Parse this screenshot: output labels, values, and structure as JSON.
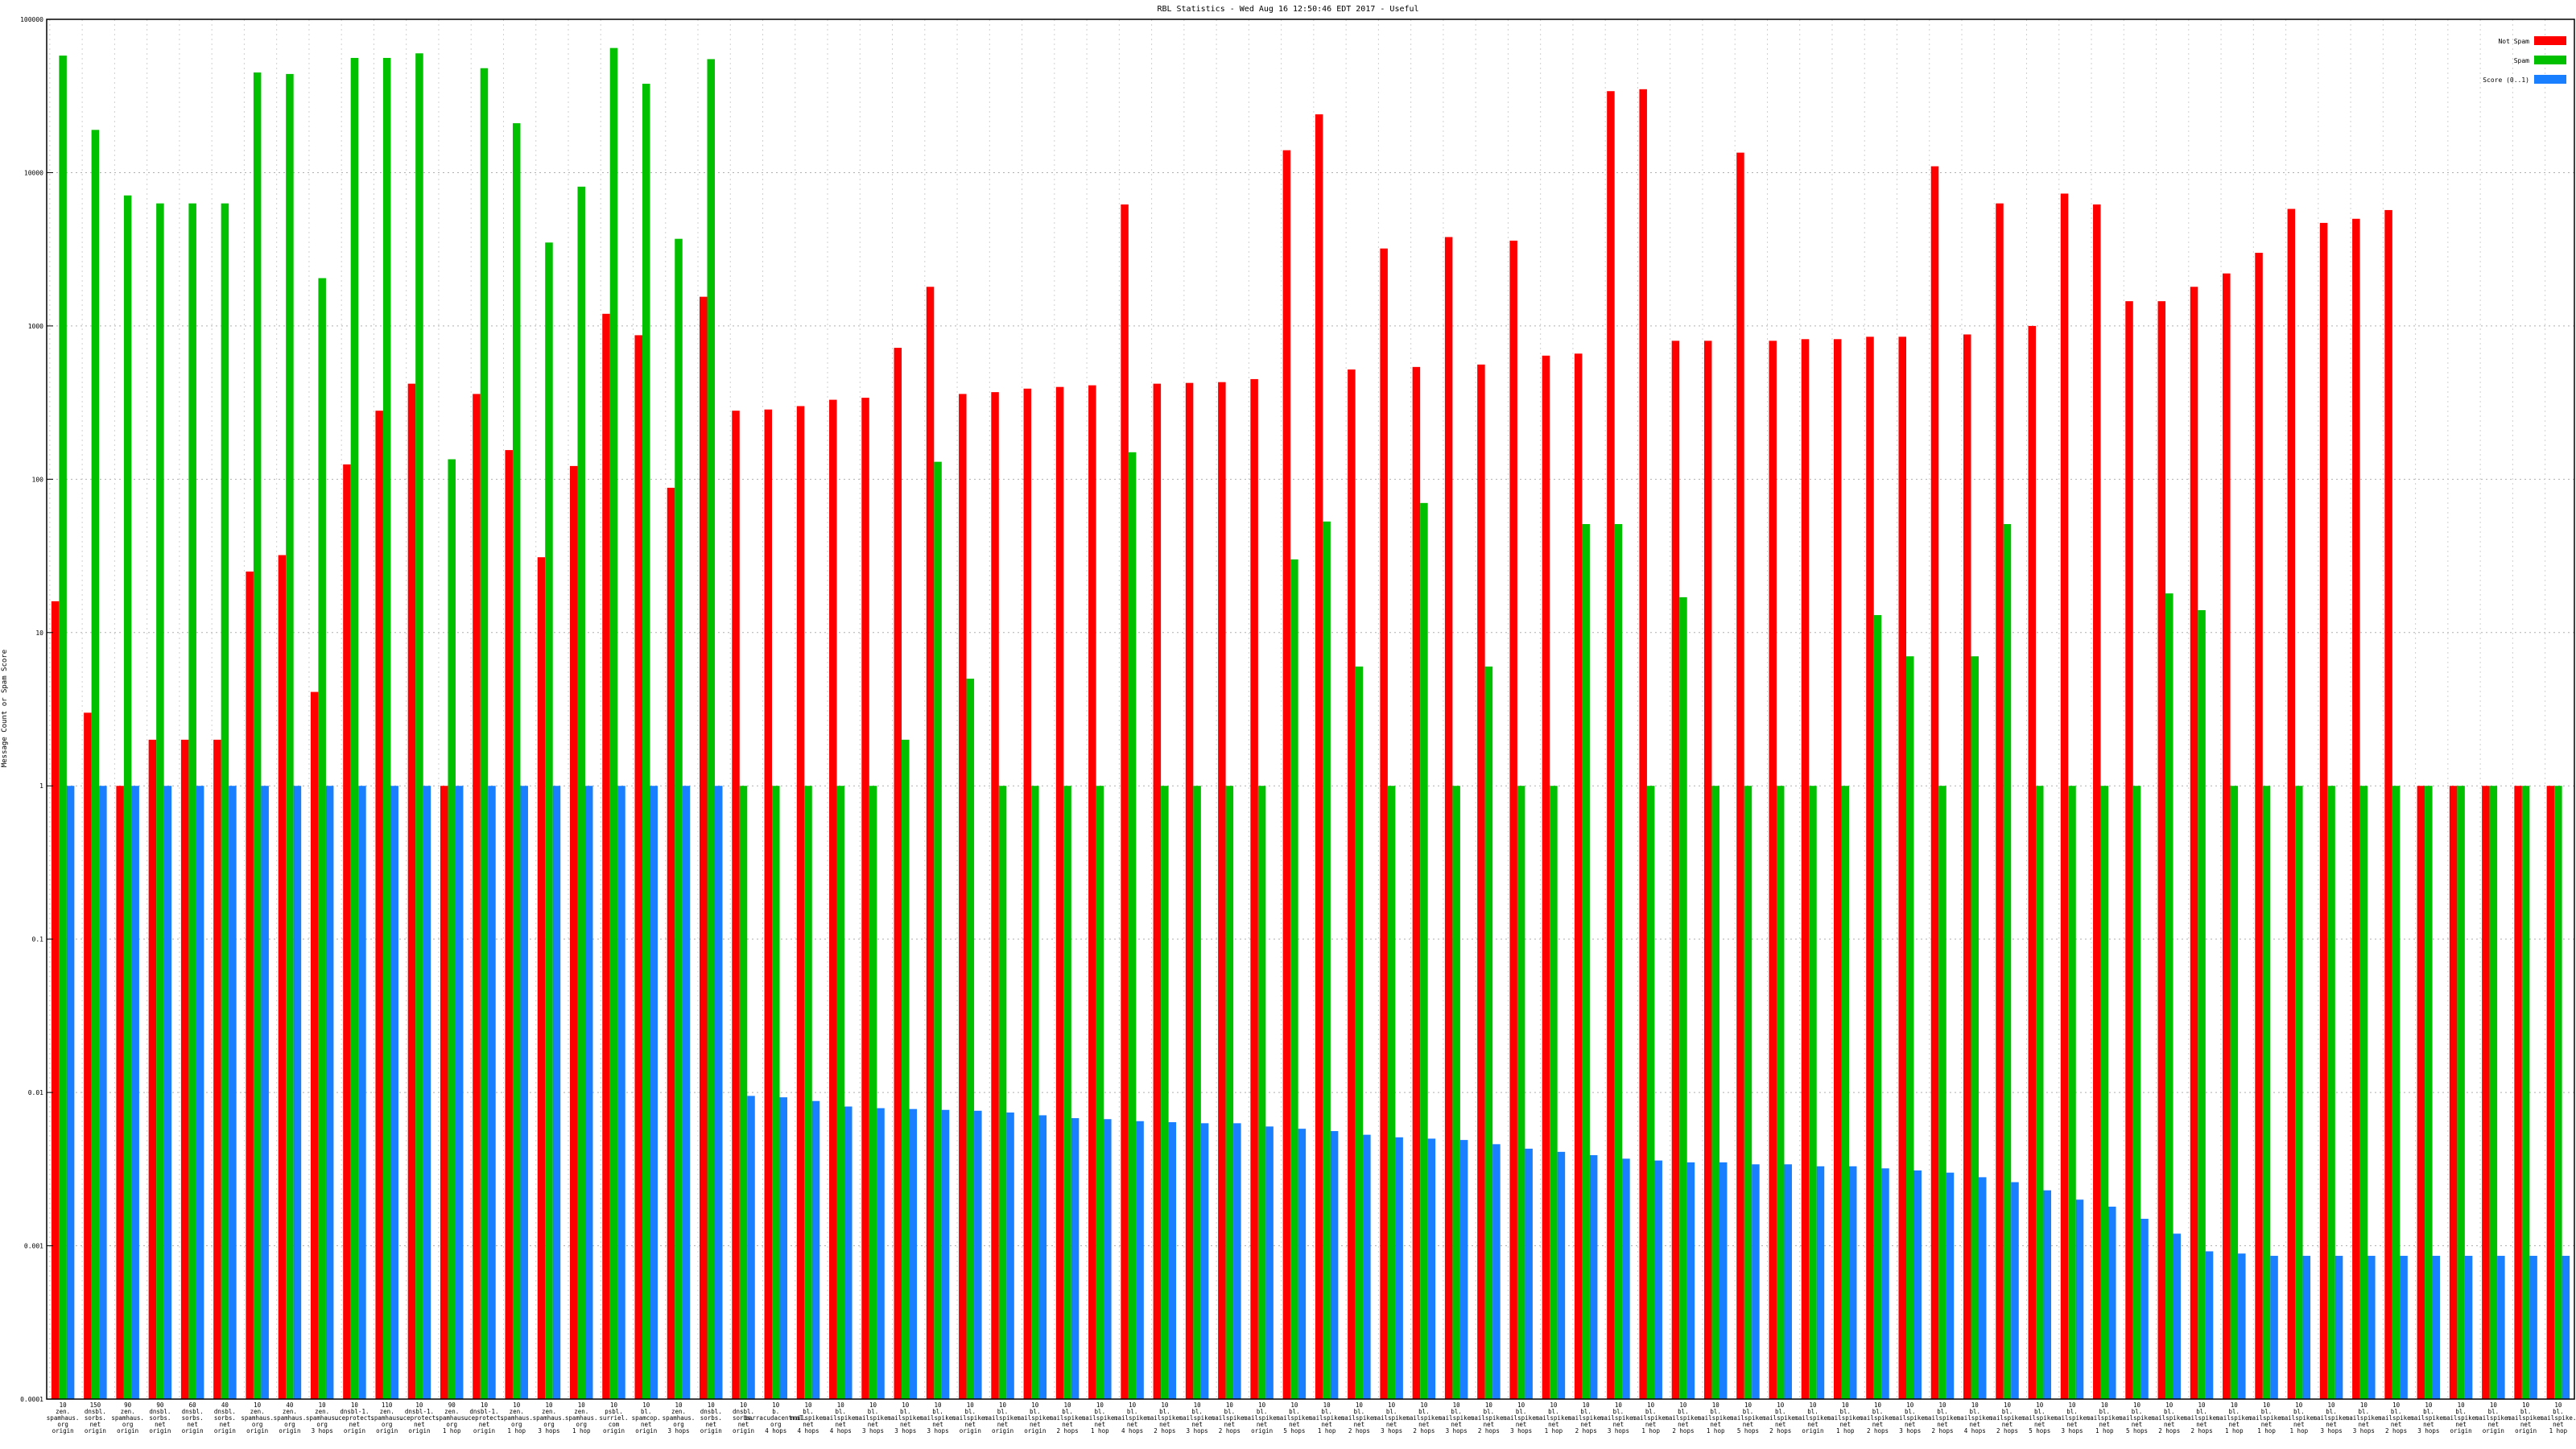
{
  "chart_data": {
    "type": "bar",
    "title": "RBL Statistics - Wed Aug 16 12:50:46 EDT 2017 - Useful",
    "xlabel": "",
    "ylabel": "Message Count or Spam Score",
    "yscale": "log",
    "ylim": [
      0.0001,
      100000
    ],
    "yticks": [
      {
        "value": 0.0001,
        "label": "0.0001"
      },
      {
        "value": 0.001,
        "label": "0.001"
      },
      {
        "value": 0.01,
        "label": "0.01"
      },
      {
        "value": 0.1,
        "label": "0.1"
      },
      {
        "value": 1,
        "label": "1"
      },
      {
        "value": 10,
        "label": "10"
      },
      {
        "value": 100,
        "label": "100"
      },
      {
        "value": 1000,
        "label": "1000"
      },
      {
        "value": 10000,
        "label": "10000"
      },
      {
        "value": 100000,
        "label": "100000"
      }
    ],
    "grid": true,
    "legend_position": "top-right",
    "categories": [
      "10\nzen.\nspamhaus.\norg\norigin",
      "150\ndnsbl.\nsorbs.\nnet\norigin",
      "90\nzen.\nspamhaus.\norg\norigin",
      "90\ndnsbl.\nsorbs.\nnet\norigin",
      "60\ndnsbl.\nsorbs.\nnet\norigin",
      "40\ndnsbl.\nsorbs.\nnet\norigin",
      "10\nzen.\nspamhaus.\norg\norigin",
      "40\nzen.\nspamhaus.\norg\norigin",
      "10\nzen.\nspamhaus.\norg\n3 hops",
      "10\ndnsbl-1.\nuceprotect.\nnet\norigin",
      "110\nzen.\nspamhaus.\norg\norigin",
      "10\ndnsbl-1.\nuceprotect.\nnet\norigin",
      "90\nzen.\nspamhaus.\norg\n1 hop",
      "10\ndnsbl-1.\nuceprotect.\nnet\norigin",
      "10\nzen.\nspamhaus.\norg\n1 hop",
      "10\nzen.\nspamhaus.\norg\n3 hops",
      "10\nzen.\nspamhaus.\norg\n1 hop",
      "10\npsbl.\nsurriel.\ncom\norigin",
      "10\nbl.\nspamcop.\nnet\norigin",
      "10\nzen.\nspamhaus.\norg\n3 hops",
      "10\ndnsbl.\nsorbs.\nnet\norigin",
      "10\ndnsbl.\nsorbs.\nnet\norigin",
      "10\nb.\nbarracudacentral.\norg\n4 hops",
      "10\nbl.\nmailspike.\nnet\n4 hops",
      "10\nbl.\nmailspike.\nnet\n4 hops",
      "10\nbl.\nmailspike.\nnet\n3 hops",
      "10\nbl.\nmailspike.\nnet\n3 hops",
      "10\nbl.\nmailspike.\nnet\n3 hops",
      "10\nbl.\nmailspike.\nnet\norigin",
      "10\nbl.\nmailspike.\nnet\norigin",
      "10\nbl.\nmailspike.\nnet\norigin",
      "10\nbl.\nmailspike.\nnet\n2 hops",
      "10\nbl.\nmailspike.\nnet\n1 hop",
      "10\nbl.\nmailspike.\nnet\n4 hops",
      "10\nbl.\nmailspike.\nnet\n2 hops",
      "10\nbl.\nmailspike.\nnet\n3 hops",
      "10\nbl.\nmailspike.\nnet\n2 hops",
      "10\nbl.\nmailspike.\nnet\norigin",
      "10\nbl.\nmailspike.\nnet\n5 hops",
      "10\nbl.\nmailspike.\nnet\n1 hop",
      "10\nbl.\nmailspike.\nnet\n2 hops",
      "10\nbl.\nmailspike.\nnet\n3 hops",
      "10\nbl.\nmailspike.\nnet\n2 hops",
      "10\nbl.\nmailspike.\nnet\n3 hops",
      "10\nbl.\nmailspike.\nnet\n2 hops",
      "10\nbl.\nmailspike.\nnet\n3 hops",
      "10\nbl.\nmailspike.\nnet\n1 hop",
      "10\nbl.\nmailspike.\nnet\n2 hops",
      "10\nbl.\nmailspike.\nnet\n3 hops",
      "10\nbl.\nmailspike.\nnet\n1 hop",
      "10\nbl.\nmailspike.\nnet\n2 hops",
      "10\nbl.\nmailspike.\nnet\n1 hop",
      "10\nbl.\nmailspike.\nnet\n5 hops",
      "10\nbl.\nmailspike.\nnet\n2 hops",
      "10\nbl.\nmailspike.\nnet\norigin",
      "10\nbl.\nmailspike.\nnet\n1 hop",
      "10\nbl.\nmailspike.\nnet\n2 hops",
      "10\nbl.\nmailspike.\nnet\n3 hops",
      "10\nbl.\nmailspike.\nnet\n2 hops",
      "10\nbl.\nmailspike.\nnet\n4 hops",
      "10\nbl.\nmailspike.\nnet\n2 hops",
      "10\nbl.\nmailspike.\nnet\n5 hops",
      "10\nbl.\nmailspike.\nnet\n3 hops",
      "10\nbl.\nmailspike.\nnet\n1 hop",
      "10\nbl.\nmailspike.\nnet\n5 hops",
      "10\nbl.\nmailspike.\nnet\n2 hops",
      "10\nbl.\nmailspike.\nnet\n2 hops",
      "10\nbl.\nmailspike.\nnet\n1 hop",
      "10\nbl.\nmailspike.\nnet\n1 hop",
      "10\nbl.\nmailspike.\nnet\n1 hop",
      "10\nbl.\nmailspike.\nnet\n3 hops",
      "10\nbl.\nmailspike.\nnet\n3 hops",
      "10\nbl.\nmailspike.\nnet\n2 hops",
      "10\nbl.\nmailspike.\nnet\n3 hops",
      "10\nbl.\nmailspike.\nnet\norigin",
      "10\nbl.\nmailspike.\nnet\norigin",
      "10\nbl.\nmailspike.\nnet\norigin",
      "10\nbl.\nmailspike.\nnet\n1 hop"
    ],
    "series": [
      {
        "name": "Not Spam",
        "color": "#ff0000",
        "values": [
          16,
          3,
          1,
          2,
          2,
          2,
          25,
          32,
          4.1,
          125,
          280,
          420,
          1,
          360,
          155,
          31,
          122,
          1200,
          870,
          88,
          1550,
          280,
          285,
          300,
          330,
          340,
          720,
          1800,
          360,
          370,
          390,
          400,
          410,
          6200,
          420,
          425,
          430,
          450,
          14000,
          24000,
          520,
          3200,
          540,
          3800,
          560,
          3600,
          640,
          660,
          34000,
          35000,
          800,
          800,
          13500,
          800,
          820,
          820,
          850,
          850,
          11000,
          880,
          6300,
          1000,
          7300,
          6200,
          1450,
          1450,
          1800,
          2200,
          3000,
          5800,
          4700,
          5000,
          5700,
          1,
          1,
          1,
          1,
          1
        ]
      },
      {
        "name": "Spam",
        "color": "#00c000",
        "values": [
          58000,
          19000,
          7100,
          6300,
          6300,
          6300,
          45000,
          44000,
          2050,
          56000,
          56000,
          60000,
          135,
          48000,
          21000,
          3500,
          8100,
          65000,
          38000,
          3700,
          55000,
          1,
          1,
          1,
          1,
          1,
          2,
          130,
          5,
          1,
          1,
          1,
          1,
          150,
          1,
          1,
          1,
          1,
          30,
          53,
          6,
          1,
          70,
          1,
          6,
          1,
          1,
          51,
          51,
          1,
          17,
          1,
          1,
          1,
          1,
          1,
          13,
          7,
          1,
          7,
          51,
          1,
          1,
          1,
          1,
          18,
          14,
          1,
          1,
          1,
          1,
          1,
          1,
          1,
          1,
          1,
          1,
          1
        ]
      },
      {
        "name": "Score (0..1)",
        "color": "#1a7fff",
        "values": [
          1,
          1,
          1,
          1,
          1,
          1,
          1,
          1,
          1,
          1,
          1,
          1,
          1,
          1,
          1,
          1,
          1,
          1,
          1,
          1,
          1,
          0.0095,
          0.0093,
          0.0088,
          0.0081,
          0.0079,
          0.0078,
          0.0077,
          0.0076,
          0.0074,
          0.0071,
          0.0068,
          0.0067,
          0.0065,
          0.0064,
          0.0063,
          0.0063,
          0.006,
          0.0058,
          0.0056,
          0.0053,
          0.0051,
          0.005,
          0.0049,
          0.0046,
          0.0043,
          0.0041,
          0.0039,
          0.0037,
          0.0036,
          0.0035,
          0.0035,
          0.0034,
          0.0034,
          0.0033,
          0.0033,
          0.0032,
          0.0031,
          0.003,
          0.0028,
          0.0026,
          0.0023,
          0.002,
          0.0018,
          0.0015,
          0.0012,
          0.00092,
          0.00089,
          0.00086,
          0.00086,
          0.00086,
          0.00086,
          0.00086,
          0.00086,
          0.00086,
          0.00086,
          0.00086,
          0.00086
        ]
      }
    ]
  }
}
